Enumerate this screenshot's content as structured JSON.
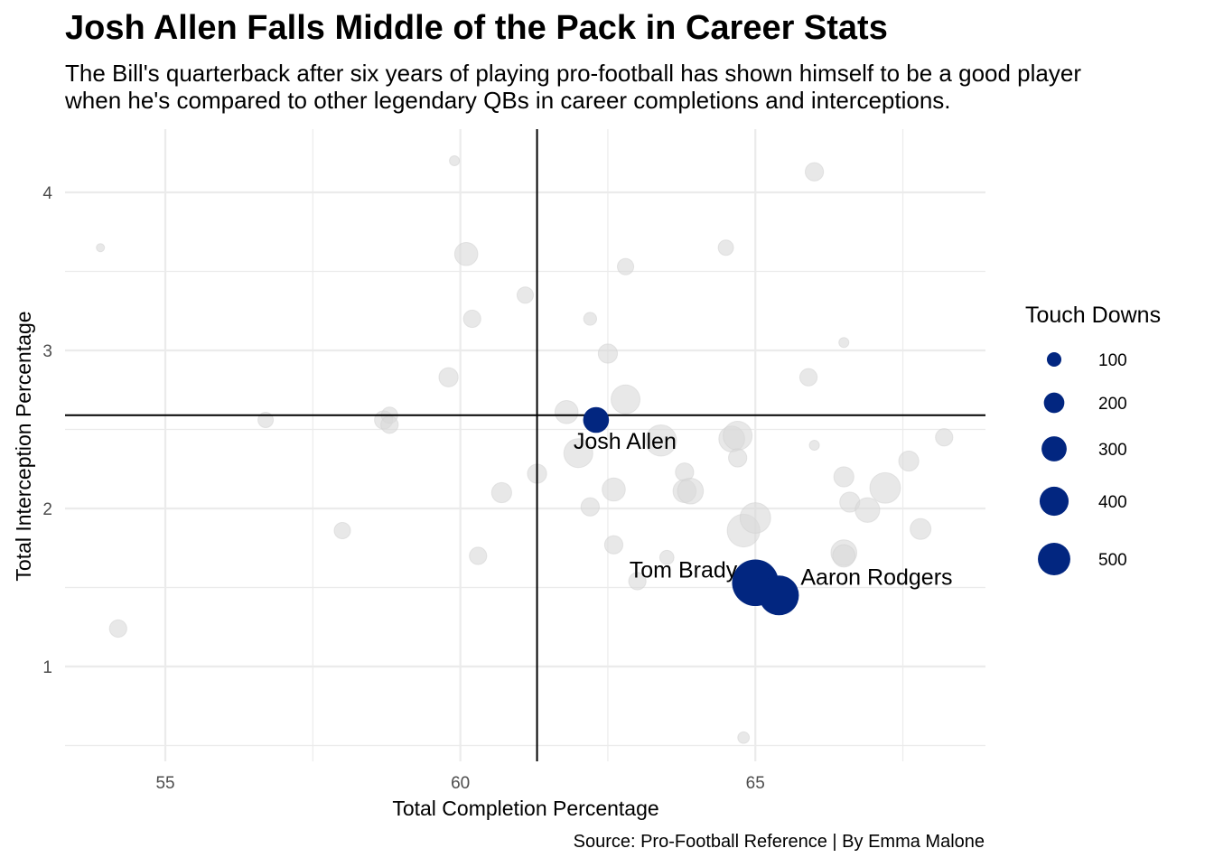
{
  "header": {
    "title": "Josh Allen Falls Middle of the Pack in Career Stats",
    "subtitle_line1": "The Bill's quarterback after six years of playing pro-football has shown himself to be a good player",
    "subtitle_line2": "when he's compared to other legendary QBs in career completions and interceptions."
  },
  "caption": "Source: Pro-Football Reference | By Emma Malone",
  "colors": {
    "highlight": "#022680",
    "other": "#d9d9d9",
    "grid": "#ebebeb",
    "reference": "#000000"
  },
  "chart_data": {
    "type": "scatter",
    "xlabel": "Total Completion Percentage",
    "ylabel": "Total Interception Percentage",
    "xlim": [
      53.3,
      68.9
    ],
    "ylim": [
      0.4,
      4.4
    ],
    "xticks": [
      55,
      60,
      65
    ],
    "yticks": [
      1,
      2,
      3,
      4
    ],
    "grid": true,
    "reference_lines": {
      "x": 61.3,
      "y": 2.59
    },
    "size_legend": {
      "title": "Touch Downs",
      "values": [
        100,
        200,
        300,
        400,
        500
      ],
      "placement": "right"
    },
    "highlighted": [
      {
        "name": "Josh Allen",
        "x": 62.3,
        "y": 2.56,
        "td": 200
      },
      {
        "name": "Tom Brady",
        "x": 65.0,
        "y": 1.53,
        "td": 649
      },
      {
        "name": "Aaron Rodgers",
        "x": 65.4,
        "y": 1.45,
        "td": 475
      }
    ],
    "others": [
      {
        "x": 53.9,
        "y": 3.65,
        "td": 20
      },
      {
        "x": 54.2,
        "y": 1.24,
        "td": 90
      },
      {
        "x": 56.7,
        "y": 2.56,
        "td": 70
      },
      {
        "x": 58.0,
        "y": 1.86,
        "td": 80
      },
      {
        "x": 58.7,
        "y": 2.56,
        "td": 100
      },
      {
        "x": 58.8,
        "y": 2.59,
        "td": 80
      },
      {
        "x": 58.8,
        "y": 2.53,
        "td": 90
      },
      {
        "x": 59.8,
        "y": 2.83,
        "td": 110
      },
      {
        "x": 59.9,
        "y": 4.2,
        "td": 30
      },
      {
        "x": 60.1,
        "y": 3.61,
        "td": 160
      },
      {
        "x": 60.2,
        "y": 3.2,
        "td": 90
      },
      {
        "x": 60.3,
        "y": 1.7,
        "td": 90
      },
      {
        "x": 60.7,
        "y": 2.1,
        "td": 120
      },
      {
        "x": 61.1,
        "y": 3.35,
        "td": 80
      },
      {
        "x": 61.3,
        "y": 2.22,
        "td": 110
      },
      {
        "x": 61.8,
        "y": 2.61,
        "td": 160
      },
      {
        "x": 62.0,
        "y": 2.35,
        "td": 250
      },
      {
        "x": 62.2,
        "y": 3.2,
        "td": 50
      },
      {
        "x": 62.2,
        "y": 2.01,
        "td": 100
      },
      {
        "x": 62.5,
        "y": 2.98,
        "td": 110
      },
      {
        "x": 62.6,
        "y": 2.12,
        "td": 160
      },
      {
        "x": 62.6,
        "y": 1.77,
        "td": 100
      },
      {
        "x": 62.8,
        "y": 2.69,
        "td": 250
      },
      {
        "x": 62.8,
        "y": 3.53,
        "td": 80
      },
      {
        "x": 63.0,
        "y": 1.54,
        "td": 90
      },
      {
        "x": 63.4,
        "y": 2.43,
        "td": 290
      },
      {
        "x": 63.5,
        "y": 1.69,
        "td": 60
      },
      {
        "x": 63.8,
        "y": 2.23,
        "td": 100
      },
      {
        "x": 63.8,
        "y": 2.11,
        "td": 160
      },
      {
        "x": 63.9,
        "y": 2.11,
        "td": 200
      },
      {
        "x": 64.5,
        "y": 3.65,
        "td": 70
      },
      {
        "x": 64.6,
        "y": 2.44,
        "td": 200
      },
      {
        "x": 64.7,
        "y": 2.46,
        "td": 250
      },
      {
        "x": 64.7,
        "y": 2.32,
        "td": 100
      },
      {
        "x": 64.8,
        "y": 1.86,
        "td": 320
      },
      {
        "x": 64.8,
        "y": 0.55,
        "td": 40
      },
      {
        "x": 65.0,
        "y": 1.94,
        "td": 280
      },
      {
        "x": 65.9,
        "y": 2.83,
        "td": 90
      },
      {
        "x": 66.0,
        "y": 2.4,
        "td": 30
      },
      {
        "x": 66.0,
        "y": 4.13,
        "td": 100
      },
      {
        "x": 66.5,
        "y": 3.05,
        "td": 30
      },
      {
        "x": 66.5,
        "y": 2.2,
        "td": 120
      },
      {
        "x": 66.5,
        "y": 1.72,
        "td": 200
      },
      {
        "x": 66.5,
        "y": 1.7,
        "td": 150
      },
      {
        "x": 66.6,
        "y": 2.04,
        "td": 120
      },
      {
        "x": 66.9,
        "y": 1.99,
        "td": 180
      },
      {
        "x": 67.2,
        "y": 2.13,
        "td": 280
      },
      {
        "x": 67.6,
        "y": 2.3,
        "td": 120
      },
      {
        "x": 67.8,
        "y": 1.87,
        "td": 130
      },
      {
        "x": 68.2,
        "y": 2.45,
        "td": 90
      }
    ]
  }
}
